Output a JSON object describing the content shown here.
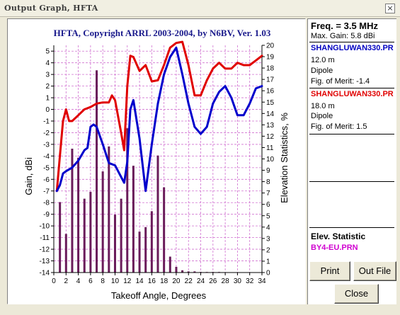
{
  "window": {
    "title": "Output Graph, HFTA",
    "close_glyph": "×"
  },
  "graph": {
    "header": "HFTA, Copyright ARRL 2003-2004, by N6BV, Ver. 1.03",
    "y_left_label": "Gain, dBi",
    "y_right_label": "Elevation Statistics, %",
    "x_label": "Takeoff Angle, Degrees",
    "x_ticks": [
      "0",
      "2",
      "4",
      "6",
      "8",
      "10",
      "12",
      "14",
      "16",
      "18",
      "20",
      "22",
      "24",
      "26",
      "28",
      "30",
      "32",
      "34"
    ],
    "y_left_ticks": [
      "5",
      "4",
      "3",
      "2",
      "1",
      "0",
      "-1",
      "-2",
      "-3",
      "-4",
      "-5",
      "-6",
      "-7",
      "-8",
      "-9",
      "-10",
      "-11",
      "-12",
      "-13",
      "-14"
    ],
    "y_right_ticks": [
      "20",
      "19",
      "18",
      "17",
      "16",
      "15",
      "14",
      "13",
      "12",
      "11",
      "10",
      "9",
      "8",
      "7",
      "6",
      "5",
      "4",
      "3",
      "2",
      "1",
      "0"
    ],
    "colors": {
      "series1": "#0000CC",
      "series2": "#E00000",
      "bars": "#6A1B5A",
      "grid": "#D070D0",
      "header": "#1A1A8C"
    }
  },
  "chart_data": {
    "type": "line",
    "title": "HFTA, Copyright ARRL 2003-2004, by N6BV, Ver. 1.03",
    "xlabel": "Takeoff Angle, Degrees",
    "ylabel": "Gain, dBi",
    "y2label": "Elevation Statistics, %",
    "xlim": [
      0,
      34
    ],
    "ylim": [
      -14,
      5.5
    ],
    "y2lim": [
      0,
      20
    ],
    "grid": true,
    "series": [
      {
        "name": "SHANGLUWAN330.PR",
        "color": "#0000CC",
        "x": [
          0.5,
          1,
          1.5,
          2,
          3,
          4,
          5,
          5.5,
          6,
          6.5,
          7,
          8,
          9,
          10,
          11,
          11.5,
          12,
          12.5,
          13,
          14,
          15,
          16,
          17,
          18,
          19,
          20,
          21,
          22,
          23,
          24,
          25,
          26,
          27,
          28,
          29,
          30,
          31,
          32,
          33,
          34
        ],
        "y": [
          -7,
          -6.5,
          -5.5,
          -5.3,
          -5,
          -4.4,
          -3.5,
          -3.3,
          -1.5,
          -1.3,
          -1.5,
          -3,
          -4.6,
          -4.8,
          -5.8,
          -6.3,
          -4.5,
          0,
          0.8,
          -2.5,
          -7,
          -3,
          0.5,
          3,
          4.5,
          5.3,
          3,
          0.5,
          -1.5,
          -2.1,
          -1.5,
          0.5,
          1.5,
          2,
          1,
          -0.5,
          -0.5,
          0.5,
          1.8,
          2
        ]
      },
      {
        "name": "SHANGLUWAN330.PR",
        "color": "#E00000",
        "x": [
          0.5,
          1,
          1.5,
          2,
          2.5,
          3,
          4,
          5,
          6,
          7,
          8,
          9,
          9.5,
          10,
          11,
          11.5,
          12,
          12.5,
          13,
          14,
          15,
          16,
          17,
          18,
          19,
          20,
          21,
          22,
          23,
          24,
          25,
          26,
          27,
          28,
          29,
          30,
          31,
          32,
          33,
          34
        ],
        "y": [
          -7,
          -4,
          -1,
          0,
          -1,
          -1,
          -0.5,
          0,
          0.2,
          0.5,
          0.6,
          0.6,
          1.2,
          0.8,
          -2,
          -3.5,
          2,
          4.6,
          4.5,
          3.3,
          3.8,
          2.4,
          2.5,
          3.8,
          5.3,
          5.7,
          5.8,
          3.8,
          1.2,
          1.2,
          2.5,
          3.5,
          4,
          3.5,
          3.5,
          4,
          3.8,
          3.8,
          4.2,
          4.6
        ]
      }
    ],
    "bars": {
      "name": "BY4-EU.PRN",
      "color": "#6A1B5A",
      "x": [
        1,
        2,
        3,
        4,
        5,
        6,
        7,
        8,
        9,
        10,
        11,
        12,
        13,
        14,
        15,
        16,
        17,
        18,
        19,
        20,
        21,
        22,
        23,
        24,
        25,
        26,
        27
      ],
      "y": [
        6.2,
        3.4,
        10.9,
        10.1,
        6.5,
        7.1,
        17.8,
        8.9,
        11.1,
        5.1,
        6.5,
        12.7,
        9.4,
        3.6,
        4,
        5.4,
        10.3,
        7.5,
        1.4,
        0.5,
        0.2,
        0.1,
        0.1,
        0.05,
        0.05,
        0.05,
        0.05
      ]
    }
  },
  "info": {
    "freq": "Freq. = 3.5 MHz",
    "max_gain": "Max. Gain: 5.8 dBi",
    "file1": {
      "name": "SHANGLUWAN330.PR",
      "height": "12.0 m",
      "type": "Dipole",
      "fom": "Fig. of Merit: -1.4"
    },
    "file2": {
      "name": "SHANGLUWAN330.PR",
      "height": "18.0 m",
      "type": "Dipole",
      "fom": "Fig. of Merit:  1.5"
    },
    "elev_title": "Elev. Statistic",
    "elev_file": "BY4-EU.PRN"
  },
  "buttons": {
    "print": "Print",
    "outfile": "Out File",
    "close": "Close"
  }
}
